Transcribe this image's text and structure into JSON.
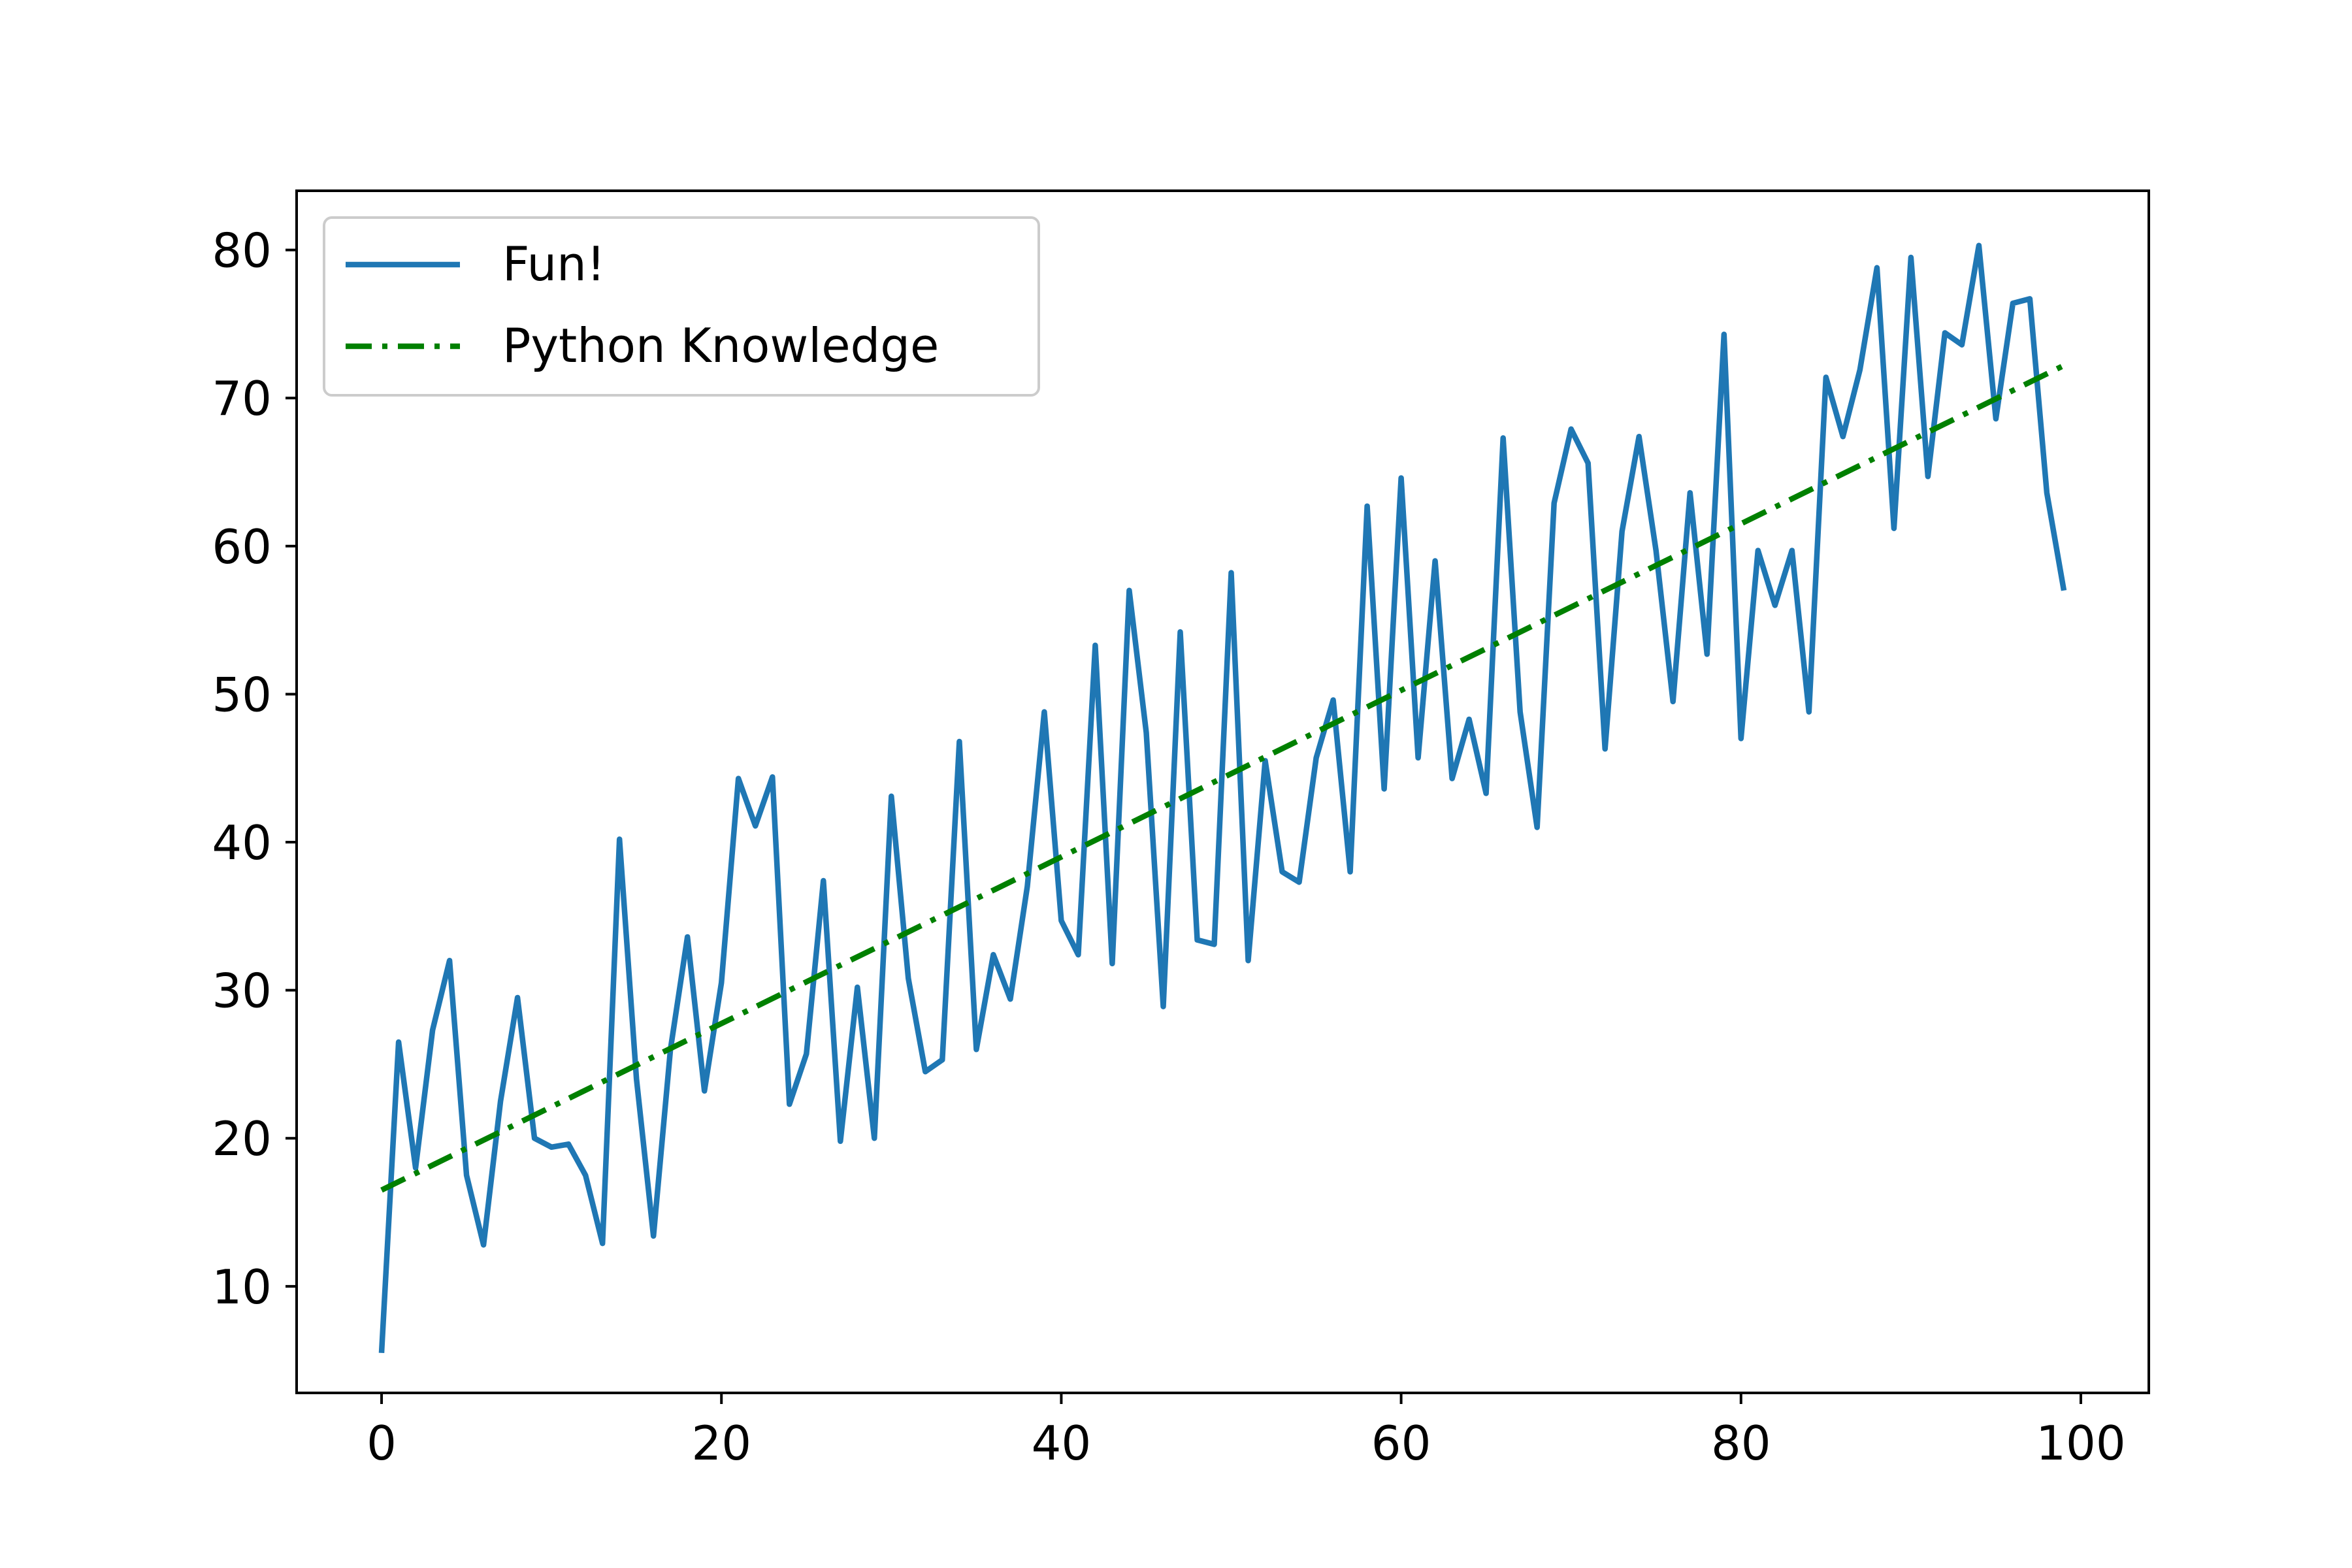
{
  "chart_data": {
    "type": "line",
    "title": "",
    "xlabel": "",
    "ylabel": "",
    "xlim": [
      -5,
      104
    ],
    "ylim": [
      2.8,
      84
    ],
    "x_ticks": [
      0,
      20,
      40,
      60,
      80,
      100
    ],
    "y_ticks": [
      10,
      20,
      30,
      40,
      50,
      60,
      70,
      80
    ],
    "grid": false,
    "legend": "upper-left",
    "series": [
      {
        "name": "Fun!",
        "color": "#1f77b4",
        "style": "solid",
        "x_start": 0,
        "x_step": 1,
        "values": [
          5.5,
          26.5,
          18.0,
          27.3,
          32.0,
          17.5,
          12.8,
          22.5,
          29.5,
          20.0,
          19.4,
          19.6,
          17.5,
          12.9,
          40.2,
          24.0,
          13.4,
          26.0,
          33.6,
          23.2,
          30.5,
          44.3,
          41.1,
          44.4,
          22.3,
          25.7,
          37.4,
          19.8,
          30.2,
          20.0,
          43.1,
          30.8,
          24.5,
          25.3,
          46.8,
          26.0,
          32.4,
          29.4,
          37.0,
          48.8,
          34.7,
          32.4,
          53.3,
          31.8,
          57.0,
          47.4,
          28.9,
          54.2,
          33.4,
          33.1,
          58.2,
          32.0,
          45.5,
          38.0,
          37.3,
          45.7,
          49.6,
          38.0,
          62.7,
          43.6,
          64.6,
          45.7,
          59.0,
          44.3,
          48.3,
          43.3,
          67.3,
          48.8,
          41.0,
          62.9,
          67.9,
          65.6,
          46.3,
          61.0,
          67.4,
          59.7,
          49.5,
          63.6,
          52.7,
          74.3,
          47.0,
          59.7,
          56.0,
          59.7,
          48.8,
          71.4,
          67.4,
          71.9,
          78.8,
          61.2,
          79.5,
          64.7,
          74.4,
          73.6,
          80.3,
          68.6,
          76.4,
          76.7,
          63.6,
          57.0
        ]
      },
      {
        "name": "Python Knowledge",
        "color": "#008000",
        "style": "dashdot",
        "x": [
          0,
          99
        ],
        "values": [
          16.5,
          72.2
        ]
      }
    ]
  }
}
